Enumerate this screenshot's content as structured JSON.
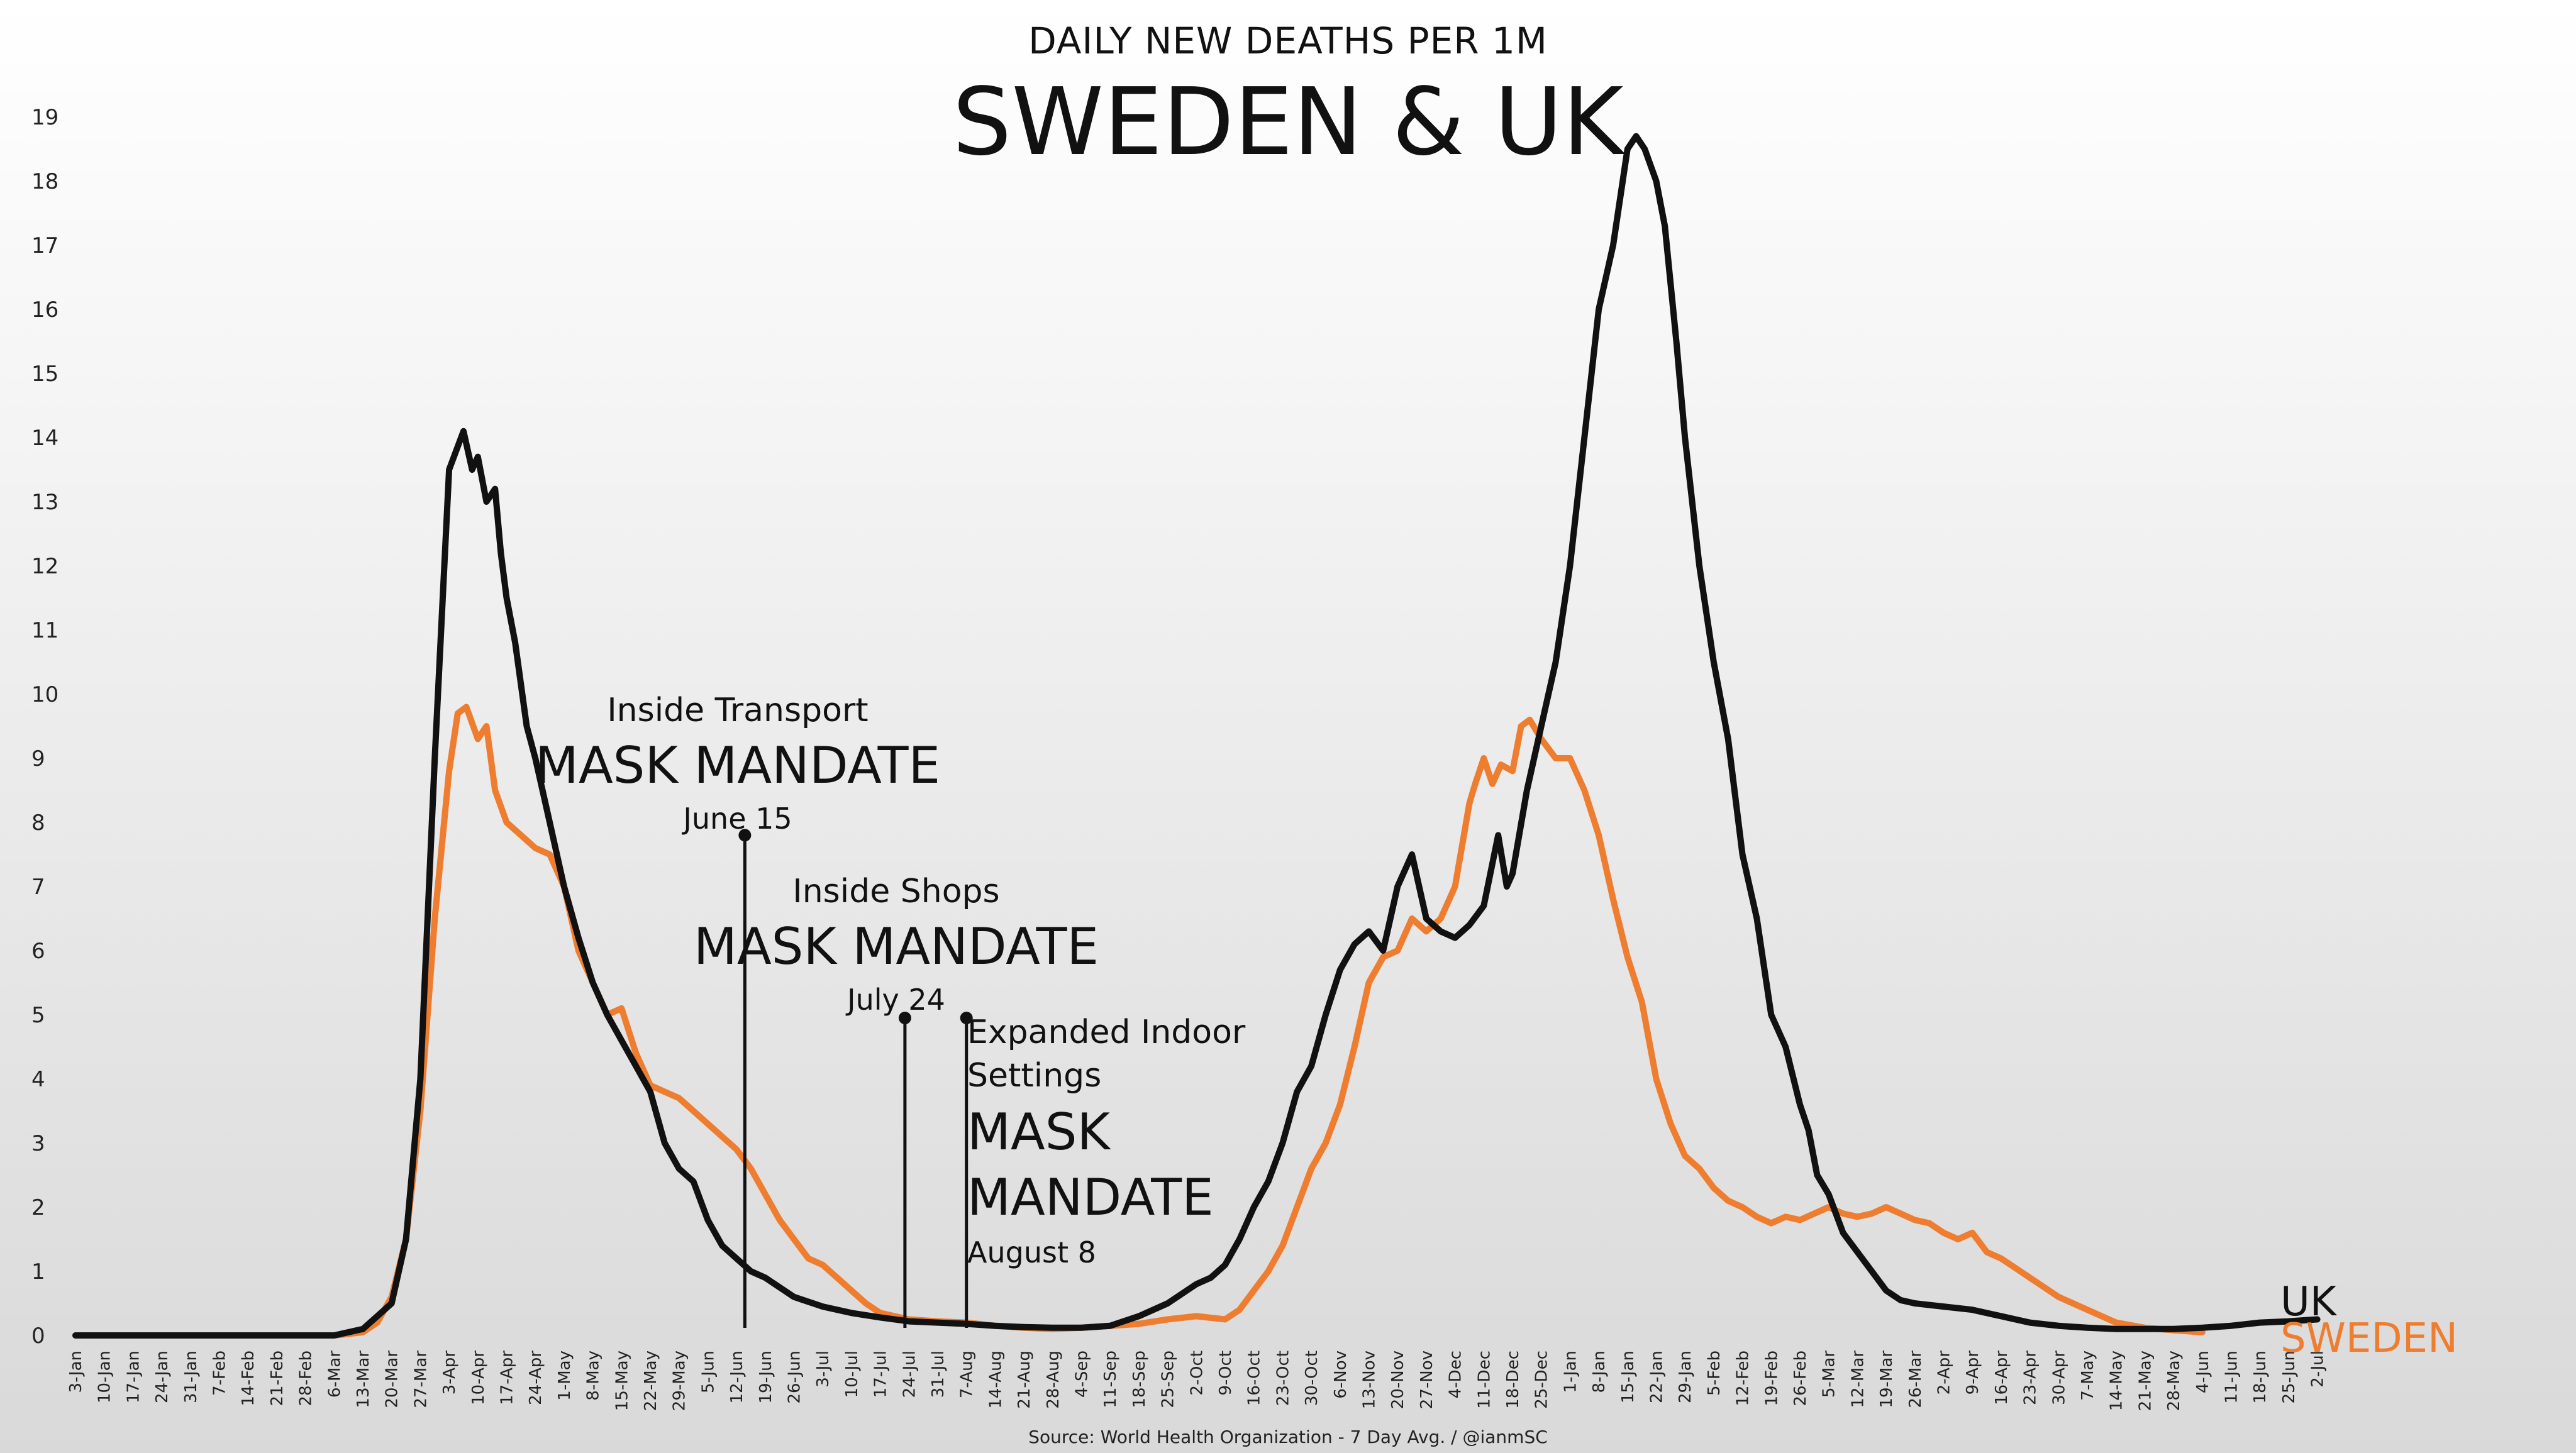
{
  "chart_data": {
    "type": "line",
    "subtitle": "DAILY NEW DEATHS PER 1M",
    "title": "SWEDEN & UK",
    "source": "Source: World Health Organization - 7 Day Avg. / @ianmSC",
    "ylim": [
      0,
      19
    ],
    "yticks": [
      0,
      1,
      2,
      3,
      4,
      5,
      6,
      7,
      8,
      9,
      10,
      11,
      12,
      13,
      14,
      15,
      16,
      17,
      18,
      19
    ],
    "xlabels": [
      "3-Jan",
      "10-Jan",
      "17-Jan",
      "24-Jan",
      "31-Jan",
      "7-Feb",
      "14-Feb",
      "21-Feb",
      "28-Feb",
      "6-Mar",
      "13-Mar",
      "20-Mar",
      "27-Mar",
      "3-Apr",
      "10-Apr",
      "17-Apr",
      "24-Apr",
      "1-May",
      "8-May",
      "15-May",
      "22-May",
      "29-May",
      "5-Jun",
      "12-Jun",
      "19-Jun",
      "26-Jun",
      "3-Jul",
      "10-Jul",
      "17-Jul",
      "24-Jul",
      "31-Jul",
      "7-Aug",
      "14-Aug",
      "21-Aug",
      "28-Aug",
      "4-Sep",
      "11-Sep",
      "18-Sep",
      "25-Sep",
      "2-Oct",
      "9-Oct",
      "16-Oct",
      "23-Oct",
      "30-Oct",
      "6-Nov",
      "13-Nov",
      "20-Nov",
      "27-Nov",
      "4-Dec",
      "11-Dec",
      "18-Dec",
      "25-Dec",
      "1-Jan",
      "8-Jan",
      "15-Jan",
      "22-Jan",
      "29-Jan",
      "5-Feb",
      "12-Feb",
      "19-Feb",
      "26-Feb",
      "5-Mar",
      "12-Mar",
      "19-Mar",
      "26-Mar",
      "2-Apr",
      "9-Apr",
      "16-Apr",
      "23-Apr",
      "30-Apr",
      "7-May",
      "14-May",
      "21-May",
      "28-May",
      "4-Jun",
      "11-Jun",
      "18-Jun",
      "25-Jun",
      "2-Jul"
    ],
    "x_index_unit": "weeks since 3-Jan (week 0)",
    "series": [
      {
        "name": "UK",
        "color": "#111111",
        "points": [
          [
            0,
            0
          ],
          [
            8,
            0
          ],
          [
            9,
            0
          ],
          [
            10,
            0.1
          ],
          [
            10.5,
            0.3
          ],
          [
            11,
            0.5
          ],
          [
            11.5,
            1.5
          ],
          [
            12,
            4
          ],
          [
            12.5,
            9
          ],
          [
            13,
            13.5
          ],
          [
            13.5,
            14.1
          ],
          [
            13.8,
            13.5
          ],
          [
            14,
            13.7
          ],
          [
            14.3,
            13
          ],
          [
            14.6,
            13.2
          ],
          [
            14.8,
            12.2
          ],
          [
            15,
            11.5
          ],
          [
            15.3,
            10.8
          ],
          [
            15.7,
            9.5
          ],
          [
            16,
            9
          ],
          [
            16.5,
            8
          ],
          [
            17,
            7
          ],
          [
            17.5,
            6.2
          ],
          [
            18,
            5.5
          ],
          [
            18.5,
            5
          ],
          [
            19,
            4.6
          ],
          [
            19.5,
            4.2
          ],
          [
            20,
            3.8
          ],
          [
            20.5,
            3
          ],
          [
            21,
            2.6
          ],
          [
            21.5,
            2.4
          ],
          [
            22,
            1.8
          ],
          [
            22.5,
            1.4
          ],
          [
            23,
            1.2
          ],
          [
            23.5,
            1
          ],
          [
            24,
            0.9
          ],
          [
            25,
            0.6
          ],
          [
            26,
            0.45
          ],
          [
            27,
            0.35
          ],
          [
            28,
            0.28
          ],
          [
            29,
            0.22
          ],
          [
            30,
            0.2
          ],
          [
            31,
            0.18
          ],
          [
            32,
            0.15
          ],
          [
            33,
            0.13
          ],
          [
            34,
            0.12
          ],
          [
            35,
            0.12
          ],
          [
            36,
            0.15
          ],
          [
            37,
            0.3
          ],
          [
            38,
            0.5
          ],
          [
            39,
            0.8
          ],
          [
            39.5,
            0.9
          ],
          [
            40,
            1.1
          ],
          [
            40.5,
            1.5
          ],
          [
            41,
            2
          ],
          [
            41.5,
            2.4
          ],
          [
            42,
            3
          ],
          [
            42.5,
            3.8
          ],
          [
            43,
            4.2
          ],
          [
            43.5,
            5
          ],
          [
            44,
            5.7
          ],
          [
            44.5,
            6.1
          ],
          [
            45,
            6.3
          ],
          [
            45.5,
            6
          ],
          [
            46,
            7
          ],
          [
            46.5,
            7.5
          ],
          [
            47,
            6.5
          ],
          [
            47.5,
            6.3
          ],
          [
            48,
            6.2
          ],
          [
            48.5,
            6.4
          ],
          [
            49,
            6.7
          ],
          [
            49.5,
            7.8
          ],
          [
            49.8,
            7
          ],
          [
            50,
            7.2
          ],
          [
            50.5,
            8.5
          ],
          [
            51,
            9.5
          ],
          [
            51.5,
            10.5
          ],
          [
            52,
            12
          ],
          [
            52.5,
            14
          ],
          [
            53,
            16
          ],
          [
            53.5,
            17
          ],
          [
            54,
            18.5
          ],
          [
            54.3,
            18.7
          ],
          [
            54.6,
            18.5
          ],
          [
            55,
            18
          ],
          [
            55.3,
            17.3
          ],
          [
            55.7,
            15.5
          ],
          [
            56,
            14
          ],
          [
            56.5,
            12
          ],
          [
            57,
            10.5
          ],
          [
            57.5,
            9.3
          ],
          [
            58,
            7.5
          ],
          [
            58.5,
            6.5
          ],
          [
            59,
            5
          ],
          [
            59.5,
            4.5
          ],
          [
            60,
            3.6
          ],
          [
            60.3,
            3.2
          ],
          [
            60.6,
            2.5
          ],
          [
            61,
            2.2
          ],
          [
            61.5,
            1.6
          ],
          [
            62,
            1.3
          ],
          [
            62.5,
            1
          ],
          [
            63,
            0.7
          ],
          [
            63.5,
            0.55
          ],
          [
            64,
            0.5
          ],
          [
            65,
            0.45
          ],
          [
            66,
            0.4
          ],
          [
            67,
            0.3
          ],
          [
            68,
            0.2
          ],
          [
            69,
            0.15
          ],
          [
            70,
            0.12
          ],
          [
            71,
            0.1
          ],
          [
            72,
            0.1
          ],
          [
            73,
            0.1
          ],
          [
            74,
            0.12
          ],
          [
            75,
            0.15
          ],
          [
            76,
            0.2
          ],
          [
            77,
            0.22
          ],
          [
            78,
            0.25
          ]
        ]
      },
      {
        "name": "SWEDEN",
        "color": "#ee7d30",
        "points": [
          [
            0,
            0
          ],
          [
            9,
            0
          ],
          [
            10,
            0.05
          ],
          [
            10.5,
            0.2
          ],
          [
            11,
            0.6
          ],
          [
            11.5,
            1.5
          ],
          [
            12,
            3.5
          ],
          [
            12.5,
            6.5
          ],
          [
            13,
            8.8
          ],
          [
            13.3,
            9.7
          ],
          [
            13.6,
            9.8
          ],
          [
            14,
            9.3
          ],
          [
            14.3,
            9.5
          ],
          [
            14.6,
            8.5
          ],
          [
            15,
            8
          ],
          [
            15.5,
            7.8
          ],
          [
            16,
            7.6
          ],
          [
            16.5,
            7.5
          ],
          [
            17,
            7
          ],
          [
            17.5,
            6
          ],
          [
            18,
            5.5
          ],
          [
            18.5,
            5
          ],
          [
            19,
            5.1
          ],
          [
            19.5,
            4.4
          ],
          [
            20,
            3.9
          ],
          [
            20.5,
            3.8
          ],
          [
            21,
            3.7
          ],
          [
            21.5,
            3.5
          ],
          [
            22,
            3.3
          ],
          [
            22.5,
            3.1
          ],
          [
            23,
            2.9
          ],
          [
            23.5,
            2.6
          ],
          [
            24,
            2.2
          ],
          [
            24.5,
            1.8
          ],
          [
            25,
            1.5
          ],
          [
            25.5,
            1.2
          ],
          [
            26,
            1.1
          ],
          [
            26.5,
            0.9
          ],
          [
            27,
            0.7
          ],
          [
            27.5,
            0.5
          ],
          [
            28,
            0.35
          ],
          [
            29,
            0.25
          ],
          [
            30,
            0.22
          ],
          [
            31,
            0.2
          ],
          [
            32,
            0.15
          ],
          [
            33,
            0.12
          ],
          [
            34,
            0.1
          ],
          [
            35,
            0.12
          ],
          [
            36,
            0.15
          ],
          [
            37,
            0.18
          ],
          [
            38,
            0.25
          ],
          [
            39,
            0.3
          ],
          [
            40,
            0.25
          ],
          [
            40.5,
            0.4
          ],
          [
            41,
            0.7
          ],
          [
            41.5,
            1
          ],
          [
            42,
            1.4
          ],
          [
            42.5,
            2
          ],
          [
            43,
            2.6
          ],
          [
            43.5,
            3
          ],
          [
            44,
            3.6
          ],
          [
            44.5,
            4.5
          ],
          [
            45,
            5.5
          ],
          [
            45.5,
            5.9
          ],
          [
            46,
            6
          ],
          [
            46.5,
            6.5
          ],
          [
            47,
            6.3
          ],
          [
            47.5,
            6.5
          ],
          [
            48,
            7
          ],
          [
            48.5,
            8.3
          ],
          [
            48.7,
            8.6
          ],
          [
            49,
            9
          ],
          [
            49.3,
            8.6
          ],
          [
            49.6,
            8.9
          ],
          [
            50,
            8.8
          ],
          [
            50.3,
            9.5
          ],
          [
            50.6,
            9.6
          ],
          [
            51,
            9.3
          ],
          [
            51.5,
            9
          ],
          [
            52,
            9
          ],
          [
            52.5,
            8.5
          ],
          [
            53,
            7.8
          ],
          [
            53.5,
            6.8
          ],
          [
            54,
            5.9
          ],
          [
            54.5,
            5.2
          ],
          [
            55,
            4
          ],
          [
            55.5,
            3.3
          ],
          [
            56,
            2.8
          ],
          [
            56.5,
            2.6
          ],
          [
            57,
            2.3
          ],
          [
            57.5,
            2.1
          ],
          [
            58,
            2
          ],
          [
            58.5,
            1.85
          ],
          [
            59,
            1.75
          ],
          [
            59.5,
            1.85
          ],
          [
            60,
            1.8
          ],
          [
            60.5,
            1.9
          ],
          [
            61,
            2
          ],
          [
            61.5,
            1.9
          ],
          [
            62,
            1.85
          ],
          [
            62.5,
            1.9
          ],
          [
            63,
            2
          ],
          [
            63.5,
            1.9
          ],
          [
            64,
            1.8
          ],
          [
            64.5,
            1.75
          ],
          [
            65,
            1.6
          ],
          [
            65.5,
            1.5
          ],
          [
            66,
            1.6
          ],
          [
            66.5,
            1.3
          ],
          [
            67,
            1.2
          ],
          [
            67.5,
            1.05
          ],
          [
            68,
            0.9
          ],
          [
            68.5,
            0.75
          ],
          [
            69,
            0.6
          ],
          [
            69.5,
            0.5
          ],
          [
            70,
            0.4
          ],
          [
            70.5,
            0.3
          ],
          [
            71,
            0.2
          ],
          [
            72,
            0.12
          ],
          [
            73,
            0.08
          ],
          [
            74,
            0.05
          ]
        ]
      }
    ],
    "annotations": [
      {
        "week": 23.29,
        "y": 7.8,
        "label_small": "Inside Transport",
        "label_big": "MASK MANDATE",
        "date": "June 15"
      },
      {
        "week": 28.86,
        "y": 4.95,
        "label_small": "Inside Shops",
        "label_big": "MASK MANDATE",
        "date": "July 24"
      },
      {
        "week": 31.0,
        "y": 4.95,
        "label_small_1": "Expanded Indoor",
        "label_small_2": "Settings",
        "label_big_1": "MASK",
        "label_big_2": "MANDATE",
        "date": "August 8"
      }
    ],
    "legend": [
      {
        "label": "UK",
        "color": "#111111"
      },
      {
        "label": "SWEDEN",
        "color": "#ee7d30"
      }
    ]
  }
}
